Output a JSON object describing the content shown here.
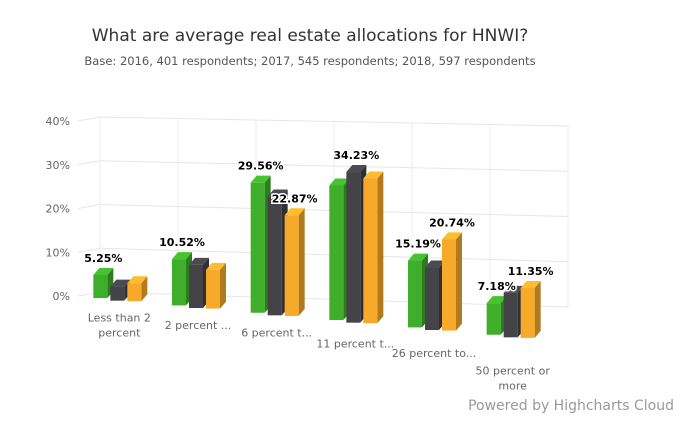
{
  "title": "What are average real estate allocations for HNWI?",
  "subtitle": "Base: 2016, 401 respondents; 2017, 545 respondents; 2018, 597 respondents",
  "credits": "Powered by Highcharts Cloud",
  "chart_data": {
    "type": "bar",
    "title": "What are average real estate allocations for HNWI?",
    "subtitle": "Base: 2016, 401 respondents; 2017, 545 respondents; 2018, 597 respondents",
    "categories": [
      [
        "Less than 2",
        "percent"
      ],
      [
        "2 percent ..."
      ],
      [
        "6 percent t..."
      ],
      [
        "11 percent t..."
      ],
      [
        "26 percent to..."
      ],
      [
        "50 percent or",
        "more"
      ]
    ],
    "series": [
      {
        "color": "#3fae2a",
        "values": [
          5.25,
          10.52,
          29.56,
          30.6,
          15.19,
          7.18
        ]
      },
      {
        "color": "#434348",
        "values": [
          3.2,
          9.8,
          27.0,
          34.23,
          14.2,
          10.1
        ]
      },
      {
        "color": "#f7a929",
        "values": [
          4.1,
          8.8,
          22.87,
          32.9,
          20.74,
          11.35
        ]
      }
    ],
    "data_labels": [
      {
        "category": 0,
        "series": 0,
        "text": "5.25%"
      },
      {
        "category": 1,
        "series": 0,
        "text": "10.52%"
      },
      {
        "category": 2,
        "series": 0,
        "text": "29.56%"
      },
      {
        "category": 2,
        "series": 2,
        "text": "22.87%"
      },
      {
        "category": 3,
        "series": 1,
        "text": "34.23%"
      },
      {
        "category": 4,
        "series": 0,
        "text": "15.19%"
      },
      {
        "category": 4,
        "series": 2,
        "text": "20.74%"
      },
      {
        "category": 5,
        "series": 0,
        "text": "7.18%"
      },
      {
        "category": 5,
        "series": 2,
        "text": "11.35%"
      }
    ],
    "y_ticks": [
      "0%",
      "10%",
      "20%",
      "30%",
      "40%"
    ],
    "ylim": [
      0,
      40
    ],
    "grid": true,
    "legend": "none",
    "three_d": true
  }
}
